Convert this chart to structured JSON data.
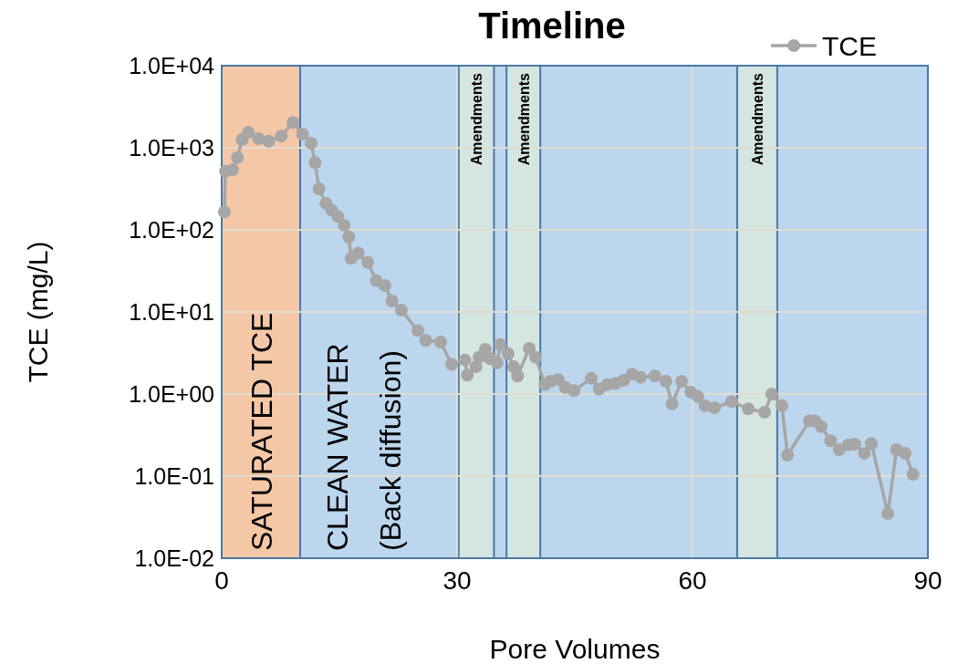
{
  "chart_data": {
    "type": "line",
    "title": "Timeline",
    "xlabel": "Pore Volumes",
    "ylabel": "TCE (mg/L)",
    "xlim": [
      0,
      90
    ],
    "xticks": [
      0,
      30,
      60,
      90
    ],
    "log": "y",
    "ylim": [
      0.01,
      10000
    ],
    "yticks": [
      {
        "value": 0.01,
        "label": "1.0E-02"
      },
      {
        "value": 0.1,
        "label": "1.0E-01"
      },
      {
        "value": 1,
        "label": "1.0E+00"
      },
      {
        "value": 10,
        "label": "1.0E+01"
      },
      {
        "value": 100,
        "label": "1.0E+02"
      },
      {
        "value": 1000,
        "label": "1.0E+03"
      },
      {
        "value": 10000,
        "label": "1.0E+04"
      }
    ],
    "grid": true,
    "legend": "top right",
    "marker": "circle",
    "line_style": "solid",
    "bands": [
      {
        "axis": "x",
        "from": 0,
        "to": 10,
        "label": "SATURATED TCE",
        "color": "#f4c7a6"
      },
      {
        "axis": "x",
        "from": 10,
        "to": 90,
        "label": "CLEAN WATER\n(Back diffusion)",
        "color": "#bcd6ee"
      },
      {
        "axis": "x",
        "from": 30.2,
        "to": 34.7,
        "label": "Amendments",
        "color": "#d5e6e0"
      },
      {
        "axis": "x",
        "from": 36.3,
        "to": 40.6,
        "label": "Amendments",
        "color": "#d5e6e0"
      },
      {
        "axis": "x",
        "from": 65.7,
        "to": 70.8,
        "label": "Amendments",
        "color": "#d5e6e0"
      }
    ],
    "series": [
      {
        "name": "TCE",
        "color": "#a6a6a6",
        "x": [
          0.35,
          0.47,
          1.4,
          2.0,
          2.6,
          3.4,
          4.7,
          6.0,
          7.6,
          9.1,
          10.3,
          11.4,
          11.9,
          12.4,
          13.3,
          14.0,
          14.8,
          15.6,
          16.2,
          16.5,
          17.4,
          18.6,
          19.7,
          20.8,
          21.7,
          22.9,
          25.0,
          26.0,
          27.9,
          29.3,
          31.0,
          31.3,
          32.4,
          32.8,
          33.6,
          34.2,
          35.1,
          35.5,
          36.5,
          37.2,
          37.7,
          39.2,
          40.0,
          41.2,
          41.9,
          42.9,
          43.8,
          44.9,
          47.1,
          48.1,
          49.1,
          50.2,
          51.2,
          52.3,
          53.4,
          55.2,
          56.6,
          57.4,
          58.6,
          59.8,
          60.7,
          61.6,
          62.8,
          65.0,
          67.1,
          69.2,
          70.1,
          71.4,
          72.1,
          74.9,
          75.6,
          76.4,
          77.6,
          78.7,
          79.9,
          80.7,
          81.9,
          82.8,
          84.9,
          86.0,
          87.1,
          88.1
        ],
        "values": [
          166,
          516,
          540,
          760,
          1260,
          1540,
          1290,
          1200,
          1390,
          2040,
          1470,
          1140,
          660,
          316,
          210,
          175,
          146,
          114,
          82,
          45,
          52,
          40,
          24,
          21,
          13.6,
          10.5,
          5.9,
          4.5,
          4.3,
          2.3,
          2.6,
          1.7,
          2.15,
          2.8,
          3.5,
          2.7,
          2.4,
          4.0,
          3.1,
          2.15,
          1.66,
          3.6,
          2.8,
          1.3,
          1.43,
          1.5,
          1.2,
          1.1,
          1.55,
          1.15,
          1.3,
          1.35,
          1.47,
          1.75,
          1.6,
          1.66,
          1.43,
          0.76,
          1.43,
          1.05,
          0.93,
          0.72,
          0.68,
          0.81,
          0.66,
          0.6,
          1.0,
          0.72,
          0.18,
          0.47,
          0.47,
          0.4,
          0.27,
          0.21,
          0.24,
          0.245,
          0.19,
          0.25,
          0.035,
          0.21,
          0.19,
          0.105
        ]
      }
    ]
  }
}
